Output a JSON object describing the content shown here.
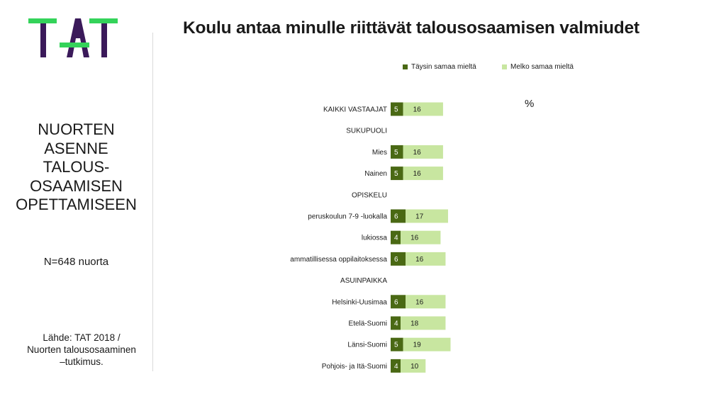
{
  "logo": {
    "text": "TAT",
    "colors": {
      "letters": "#3b1a5a",
      "bar": "#34d35a"
    }
  },
  "left_panel": {
    "title_lines": [
      "NUORTEN",
      "ASENNE",
      "TALOUS-",
      "OSAAMISEN",
      "OPETTAMISEEN"
    ],
    "sample": "N=648 nuorta",
    "source_lines": [
      "Lähde: TAT 2018 /",
      "Nuorten talousosaaminen",
      "–tutkimus."
    ]
  },
  "chart_data": {
    "type": "bar",
    "orientation": "horizontal",
    "stacked": true,
    "title": "Koulu antaa minulle riittävät talousosaamisen valmiudet",
    "unit": "%",
    "legend_position": "top-right",
    "grid": false,
    "series": [
      {
        "name": "Täysin samaa mieltä",
        "color": "#4a6914"
      },
      {
        "name": "Melko samaa mieltä",
        "color": "#c8e6a0"
      }
    ],
    "rows": [
      {
        "label": "KAIKKI VASTAAJAT",
        "values": [
          5,
          16
        ]
      },
      {
        "label": "SUKUPUOLI",
        "header": true
      },
      {
        "label": "Mies",
        "values": [
          5,
          16
        ]
      },
      {
        "label": "Nainen",
        "values": [
          5,
          16
        ]
      },
      {
        "label": "OPISKELU",
        "header": true
      },
      {
        "label": "peruskoulun 7-9 -luokalla",
        "values": [
          6,
          17
        ]
      },
      {
        "label": "lukiossa",
        "values": [
          4,
          16
        ]
      },
      {
        "label": "ammatillisessa oppilaitoksessa",
        "values": [
          6,
          16
        ]
      },
      {
        "label": "ASUINPAIKKA",
        "header": true
      },
      {
        "label": "Helsinki-Uusimaa",
        "values": [
          6,
          16
        ]
      },
      {
        "label": "Etelä-Suomi",
        "values": [
          4,
          18
        ]
      },
      {
        "label": "Länsi-Suomi",
        "values": [
          5,
          19
        ]
      },
      {
        "label": "Pohjois- ja Itä-Suomi",
        "values": [
          4,
          10
        ]
      }
    ]
  }
}
